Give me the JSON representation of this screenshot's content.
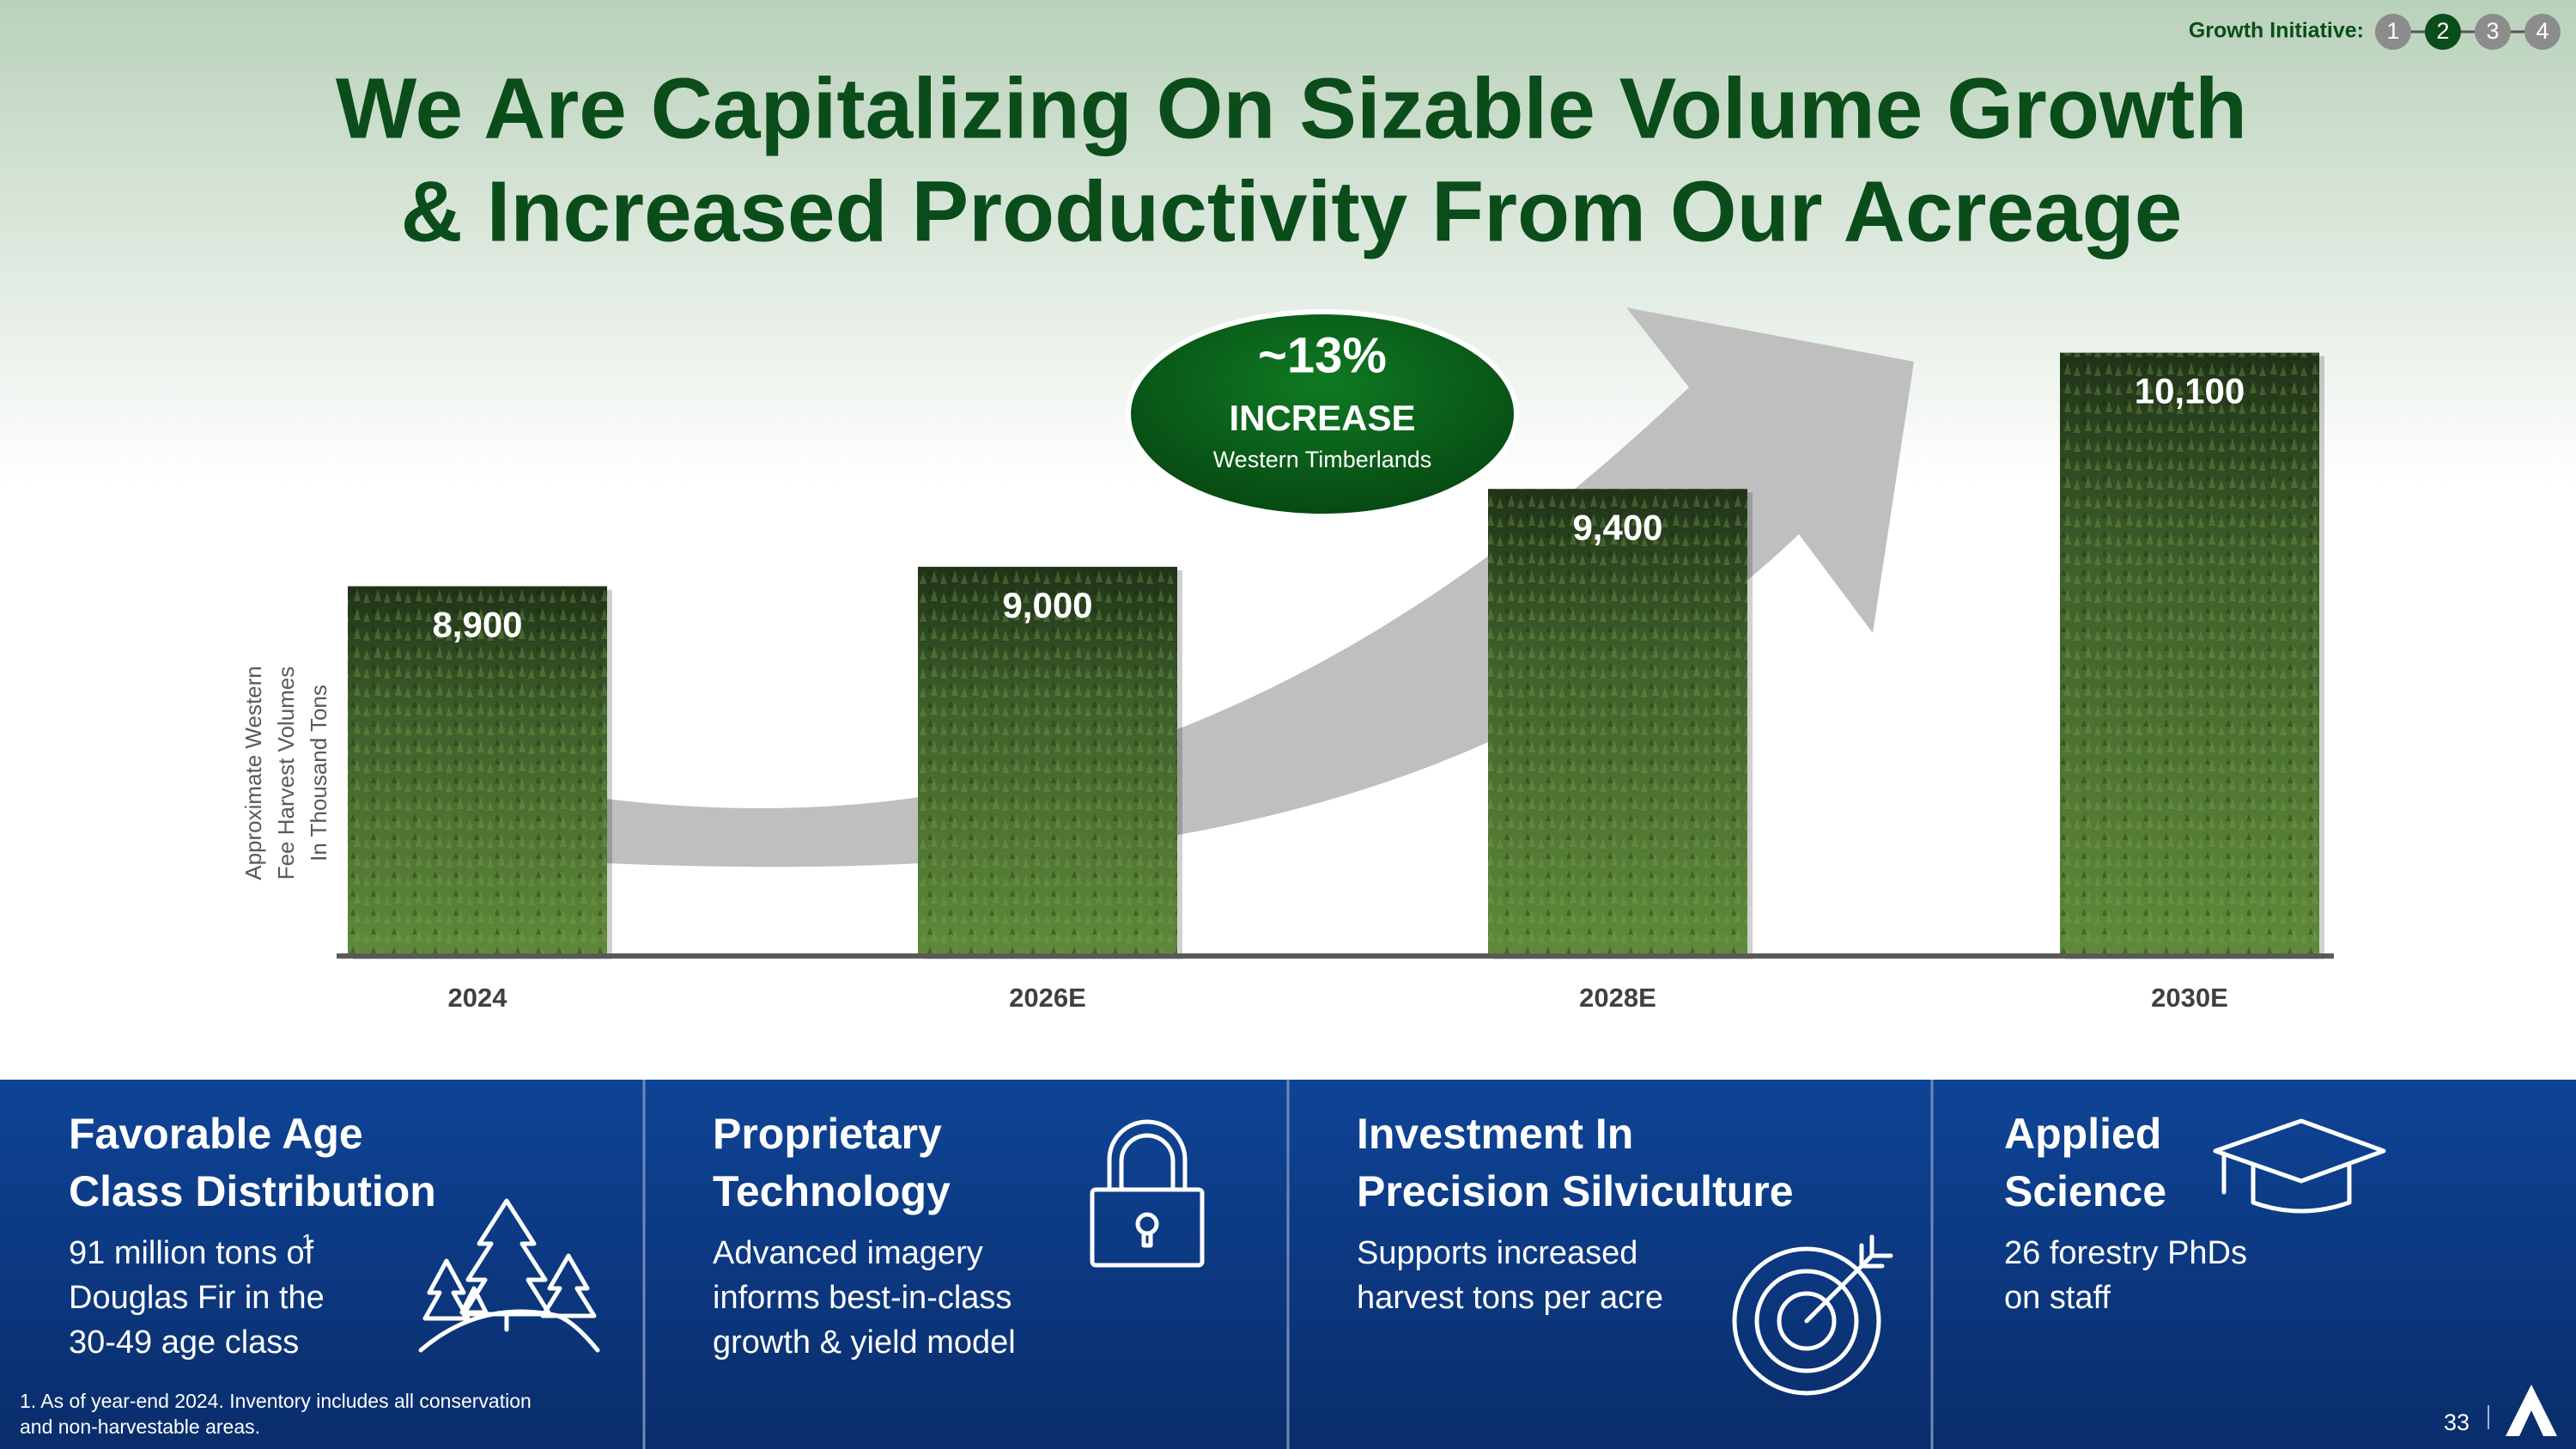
{
  "nav": {
    "label": "Growth Initiative:",
    "steps": [
      1,
      2,
      3,
      4
    ],
    "active": 2
  },
  "chart_data": {
    "type": "bar",
    "title": [
      "We Are Capitalizing On Sizable Volume Growth",
      "& Increased Productivity From Our Acreage"
    ],
    "ylabel": [
      "Approximate Western",
      "Fee Harvest Volumes",
      "In Thousand Tons"
    ],
    "categories": [
      "2024",
      "2026E",
      "2028E",
      "2030E"
    ],
    "values": [
      8900,
      9000,
      9400,
      10100
    ],
    "value_labels": [
      "8,900",
      "9,000",
      "9,400",
      "10,100"
    ],
    "ylim": [
      7000,
      10500
    ],
    "annotation": {
      "headline": "~13%",
      "label": "INCREASE",
      "sublabel": "Western Timberlands"
    }
  },
  "panels": [
    {
      "heading": [
        "Favorable Age",
        "Class Distribution"
      ],
      "body": [
        "91 million tons of",
        "Douglas Fir in the",
        "30-49 age class"
      ],
      "note_ref": "1"
    },
    {
      "heading": [
        "Proprietary",
        "Technology"
      ],
      "body": [
        "Advanced imagery",
        "informs best-in-class",
        "growth & yield model"
      ]
    },
    {
      "heading": [
        "Investment In",
        "Precision Silviculture"
      ],
      "body": [
        "Supports increased",
        "harvest tons per acre"
      ]
    },
    {
      "heading": [
        "Applied",
        "Science"
      ],
      "body": [
        "26 forestry PhDs",
        "on staff"
      ]
    }
  ],
  "footnote": [
    "1. As of year-end 2024. Inventory includes all conservation",
    "and non-harvestable areas."
  ],
  "page_number": 33
}
